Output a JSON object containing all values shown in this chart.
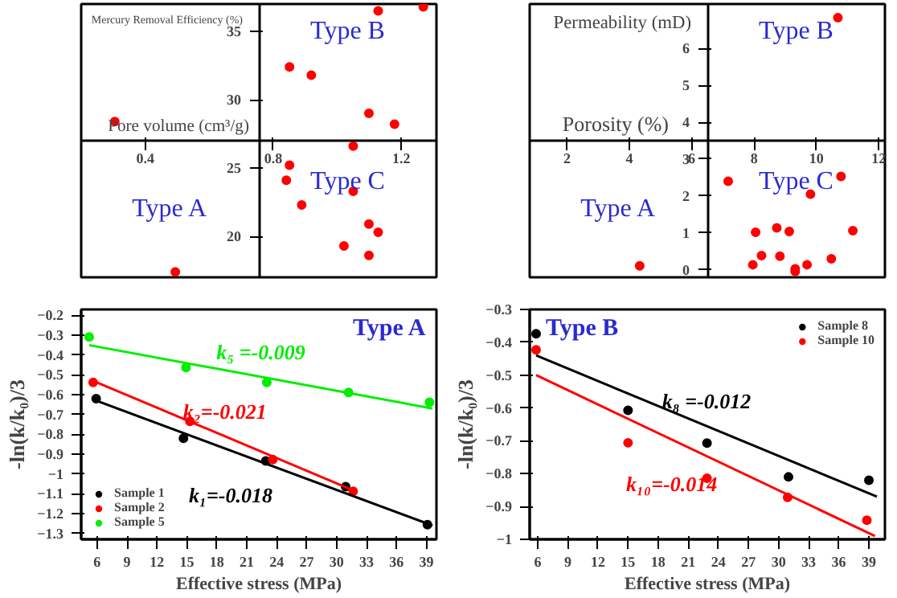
{
  "chart_data": [
    {
      "type": "scatter",
      "xlabel": "Pore volume (cm³/g)",
      "ylabel": "Mercury Removal Efficiency (%)",
      "xlim": [
        0.2,
        1.31
      ],
      "ylim": [
        17,
        37
      ],
      "xticks": [
        0.4,
        0.8,
        1.2
      ],
      "yticks": [
        20,
        25,
        30,
        35
      ],
      "marker": "circle",
      "annotations": [
        "Type B",
        "Type A",
        "Type C"
      ],
      "series": [
        {
          "color": "#ff0000",
          "x": [
            0.305,
            0.494,
            0.851,
            0.919,
            1.128,
            1.269,
            1.099,
            1.179,
            1.05,
            0.851,
            0.841,
            0.889,
            1.05,
            1.099,
            1.128,
            1.021,
            1.099
          ],
          "values": [
            28.4,
            17.4,
            32.4,
            31.8,
            36.5,
            36.8,
            29.0,
            28.2,
            26.6,
            25.2,
            24.1,
            22.3,
            23.3,
            20.9,
            20.3,
            19.3,
            18.6
          ]
        }
      ]
    },
    {
      "type": "scatter",
      "xlabel": "Porosity (%)",
      "ylabel": "Permeability (mD)",
      "xlim": [
        0.8,
        12.2
      ],
      "ylim": [
        -0.2,
        7.2
      ],
      "xticks": [
        2,
        4,
        6,
        8,
        10,
        12
      ],
      "yticks": [
        0,
        1,
        2,
        3,
        4,
        5,
        6
      ],
      "marker": "circle",
      "annotations": [
        "Type B",
        "Type A",
        "Type C"
      ],
      "series": [
        {
          "color": "#ff0000",
          "x": [
            10.69,
            7.17,
            10.79,
            9.81,
            8.05,
            8.73,
            9.13,
            11.17,
            8.24,
            8.83,
            7.96,
            9.7,
            10.48,
            9.32,
            9.32,
            4.33
          ],
          "values": [
            6.83,
            2.4,
            2.53,
            2.05,
            1.02,
            1.14,
            1.04,
            1.06,
            0.39,
            0.37,
            0.14,
            0.14,
            0.3,
            0.03,
            -0.04,
            0.11
          ]
        }
      ]
    },
    {
      "type": "scatter",
      "xlabel": "Effective stress (MPa)",
      "ylabel": "-ln(k/k₀)/3",
      "xlim": [
        4.4,
        40
      ],
      "ylim": [
        -1.33,
        -0.17
      ],
      "xticks": [
        6,
        9,
        12,
        15,
        18,
        21,
        24,
        27,
        30,
        33,
        36,
        39
      ],
      "yticks": [
        -1.3,
        -1.2,
        -1.1,
        -1.0,
        -0.9,
        -0.8,
        -0.7,
        -0.6,
        -0.5,
        -0.4,
        -0.3,
        -0.2
      ],
      "marker": "circle",
      "legend": "bottom left",
      "annotations": [
        "k₁=-0.018",
        "k₂=-0.021",
        "k₅ =-0.009",
        "Type A"
      ],
      "series": [
        {
          "name": "Sample 1",
          "color": "#000000",
          "x": [
            5.9,
            14.65,
            22.9,
            30.9,
            39.1
          ],
          "values": [
            -0.62,
            -0.82,
            -0.935,
            -1.064,
            -1.256
          ]
        },
        {
          "name": "Sample 2",
          "color": "#ff0000",
          "x": [
            5.6,
            15.3,
            23.6,
            31.65
          ],
          "values": [
            -0.538,
            -0.735,
            -0.927,
            -1.088
          ]
        },
        {
          "name": "Sample 5",
          "color": "#00ee00",
          "x": [
            5.2,
            14.9,
            23.0,
            31.2,
            39.3
          ],
          "values": [
            -0.309,
            -0.463,
            -0.538,
            -0.589,
            -0.638
          ]
        },
        {
          "type": "line",
          "marker": "none",
          "color": "#000000",
          "x": [
            5.9,
            39.6
          ],
          "values": [
            -0.63,
            -1.26
          ]
        },
        {
          "type": "line",
          "marker": "none",
          "color": "#ff0000",
          "x": [
            5.6,
            32.0
          ],
          "values": [
            -0.53,
            -1.09
          ]
        },
        {
          "type": "line",
          "marker": "none",
          "color": "#00ee00",
          "x": [
            5.2,
            39.6
          ],
          "values": [
            -0.35,
            -0.67
          ]
        }
      ]
    },
    {
      "type": "scatter",
      "xlabel": "Effective stress (MPa)",
      "ylabel": "-ln(k/k₀)/3",
      "xlim": [
        5.2,
        40.6
      ],
      "ylim": [
        -1.0,
        -0.3
      ],
      "xticks": [
        6,
        9,
        12,
        15,
        18,
        21,
        24,
        27,
        30,
        33,
        36,
        39
      ],
      "yticks": [
        -1.0,
        -0.9,
        -0.8,
        -0.7,
        -0.6,
        -0.5,
        -0.4,
        -0.3
      ],
      "marker": "circle",
      "legend": "top right",
      "annotations": [
        "k₈ =-0.012",
        "k₁₀=-0.014",
        "Type B"
      ],
      "series": [
        {
          "name": "Sample 8",
          "color": "#000000",
          "x": [
            5.84,
            15.0,
            22.87,
            30.99,
            39.0
          ],
          "values": [
            -0.374,
            -0.607,
            -0.707,
            -0.81,
            -0.82
          ]
        },
        {
          "name": "Sample 10",
          "color": "#ff0000",
          "x": [
            5.84,
            15.0,
            22.87,
            30.9,
            38.8
          ],
          "values": [
            -0.423,
            -0.706,
            -0.814,
            -0.872,
            -0.942
          ]
        },
        {
          "type": "line",
          "marker": "none",
          "color": "#000000",
          "x": [
            5.84,
            39.8
          ],
          "values": [
            -0.44,
            -0.87
          ]
        },
        {
          "type": "line",
          "marker": "none",
          "color": "#ff0000",
          "x": [
            5.84,
            39.6
          ],
          "values": [
            -0.5,
            -0.99
          ]
        }
      ]
    }
  ]
}
